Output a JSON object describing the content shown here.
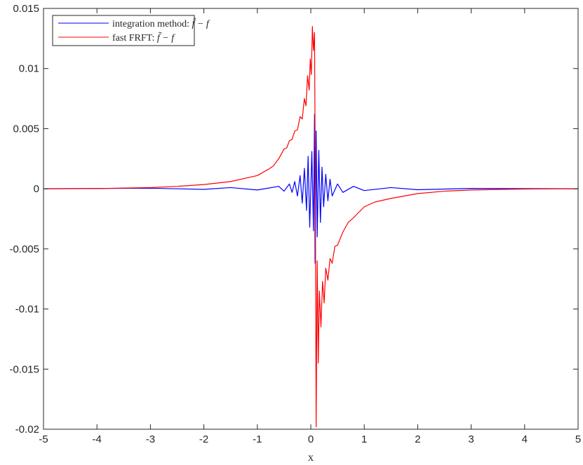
{
  "chart_data": {
    "type": "line",
    "title": "",
    "xlabel": "x",
    "ylabel": "",
    "xlim": [
      -5,
      5
    ],
    "ylim": [
      -0.02,
      0.015
    ],
    "xticks": [
      "-5",
      "-4",
      "-3",
      "-2",
      "-1",
      "0",
      "1",
      "2",
      "3",
      "4",
      "5"
    ],
    "xtick_values": [
      -5,
      -4,
      -3,
      -2,
      -1,
      0,
      1,
      2,
      3,
      4,
      5
    ],
    "yticks": [
      "-0.02",
      "-0.015",
      "-0.01",
      "-0.005",
      "0",
      "0.005",
      "0.01",
      "0.015"
    ],
    "ytick_values": [
      -0.02,
      -0.015,
      -0.01,
      -0.005,
      0,
      0.005,
      0.01,
      0.015
    ],
    "grid": false,
    "legend_placement": "top-left",
    "series": [
      {
        "name": "integration method: f̂ − f",
        "name_prefix": "integration method: ",
        "name_math": "f̂ − f",
        "color": "#0000ff",
        "x": [
          -5,
          -3,
          -2,
          -1.5,
          -1,
          -0.6,
          -0.5,
          -0.4,
          -0.35,
          -0.3,
          -0.25,
          -0.2,
          -0.16,
          -0.12,
          -0.08,
          -0.05,
          -0.02,
          0.02,
          0.05,
          0.07,
          0.08,
          0.1,
          0.12,
          0.15,
          0.18,
          0.21,
          0.24,
          0.28,
          0.32,
          0.36,
          0.4,
          0.5,
          0.6,
          0.8,
          1,
          1.5,
          2,
          3,
          5
        ],
        "y": [
          0,
          5e-05,
          -5e-05,
          0.0001,
          -0.0001,
          0.0002,
          -0.0002,
          0.0004,
          -0.0003,
          0.0006,
          -0.0006,
          0.0011,
          -0.0012,
          0.0017,
          -0.0018,
          0.0027,
          -0.0032,
          0.0031,
          -0.0035,
          0.0062,
          -0.0062,
          0.0048,
          -0.004,
          0.0032,
          -0.0028,
          0.0018,
          -0.0015,
          0.0012,
          -0.001,
          0.0008,
          -0.0006,
          0.0004,
          -0.0003,
          0.0002,
          -0.00015,
          0.0001,
          -8e-05,
          3e-05,
          0
        ]
      },
      {
        "name": "fast FRFT: f̃ − f",
        "name_prefix": "fast FRFT: ",
        "name_math": "f̃ − f",
        "color": "#ff0000",
        "x": [
          -5,
          -4,
          -3,
          -2.5,
          -2,
          -1.5,
          -1.2,
          -1,
          -0.8,
          -0.7,
          -0.6,
          -0.5,
          -0.45,
          -0.4,
          -0.35,
          -0.3,
          -0.25,
          -0.2,
          -0.16,
          -0.12,
          -0.09,
          -0.06,
          -0.03,
          -0.01,
          0.01,
          0.03,
          0.05,
          0.07,
          0.085,
          0.1,
          0.12,
          0.14,
          0.16,
          0.19,
          0.22,
          0.25,
          0.28,
          0.32,
          0.36,
          0.4,
          0.45,
          0.5,
          0.6,
          0.7,
          0.8,
          1,
          1.2,
          1.5,
          2,
          2.5,
          3,
          4,
          5
        ],
        "y": [
          0,
          2e-05,
          0.0001,
          0.0002,
          0.00035,
          0.0006,
          0.0009,
          0.0011,
          0.0016,
          0.0019,
          0.0025,
          0.0033,
          0.0034,
          0.004,
          0.0041,
          0.0048,
          0.0049,
          0.006,
          0.0058,
          0.0075,
          0.0069,
          0.0094,
          0.0082,
          0.0108,
          0.0095,
          0.0135,
          0.0115,
          0.013,
          0,
          -0.0198,
          -0.006,
          -0.0145,
          -0.0085,
          -0.0115,
          -0.0077,
          -0.0095,
          -0.0066,
          -0.0076,
          -0.0058,
          -0.0062,
          -0.0048,
          -0.0047,
          -0.0036,
          -0.0028,
          -0.0024,
          -0.0015,
          -0.0011,
          -0.0008,
          -0.0004,
          -0.0002,
          -0.0001,
          -2e-05,
          0
        ]
      }
    ]
  }
}
